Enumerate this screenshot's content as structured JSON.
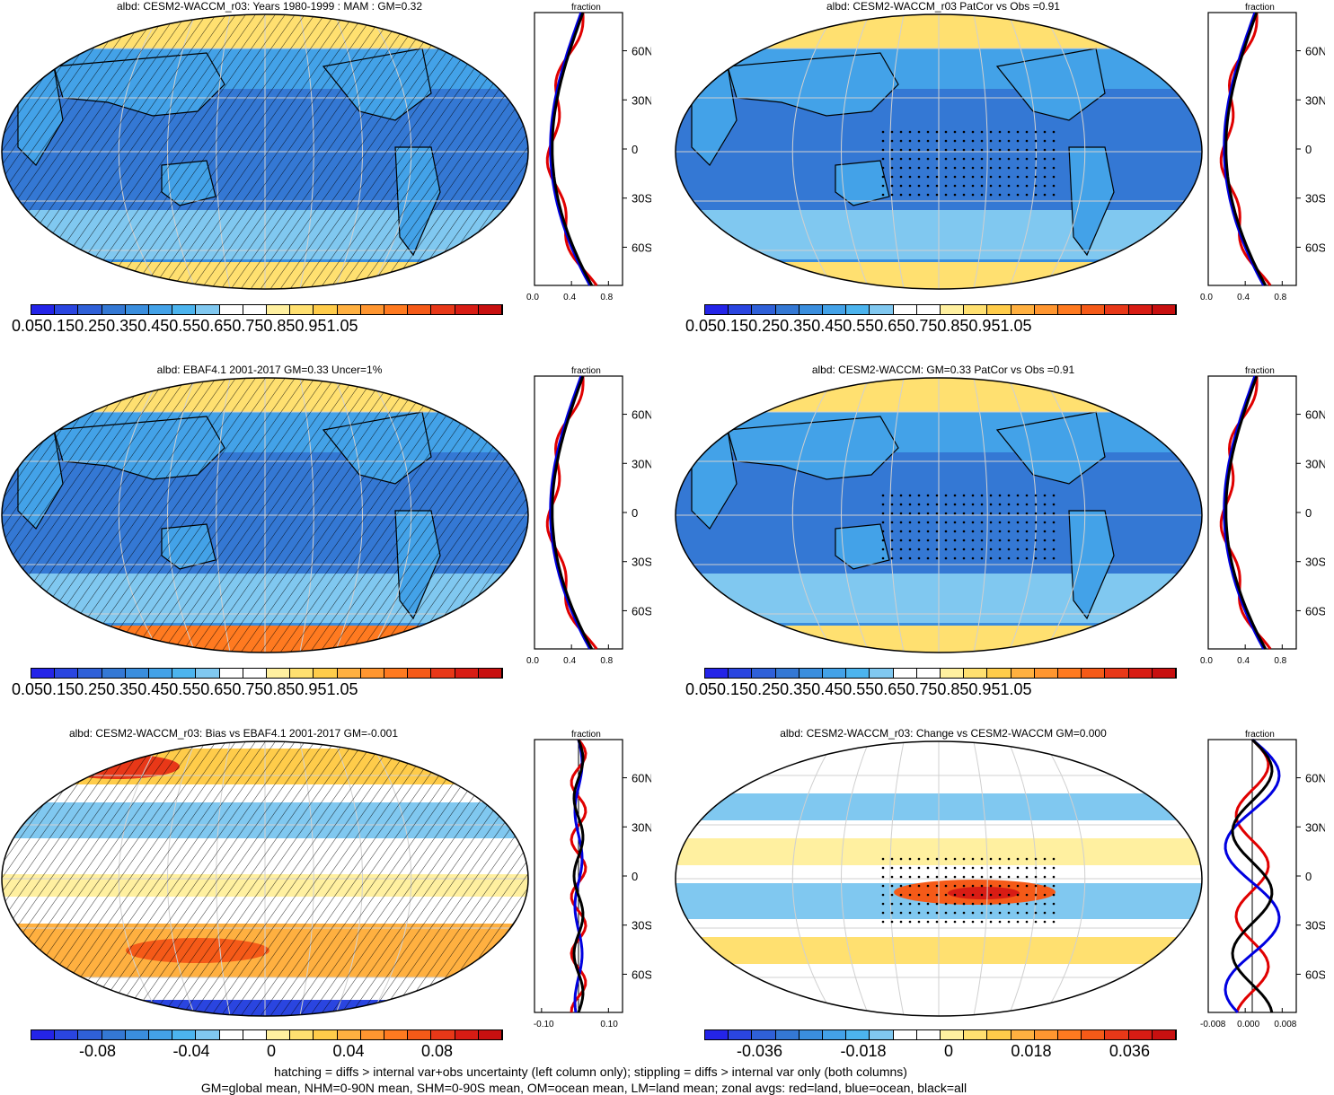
{
  "panels": [
    {
      "title": "albd: CESM2-WACCM_r03: Years 1980-1999 : MAM : GM=0.32",
      "kind": "abs",
      "hatch": true,
      "stipple": false,
      "cb_labels": [
        "0.05",
        "0.15",
        "0.25",
        "0.35",
        "0.45",
        "0.55",
        "0.65",
        "0.75",
        "0.85",
        "0.95",
        "1.05"
      ],
      "zonal_xlabel": "fraction",
      "zonal_xticks": [
        "0.0",
        "0.4",
        "0.8"
      ]
    },
    {
      "title": "albd: CESM2-WACCM_r03 PatCor vs Obs =0.91",
      "kind": "abs",
      "hatch": false,
      "stipple": true,
      "cb_labels": [
        "0.05",
        "0.15",
        "0.25",
        "0.35",
        "0.45",
        "0.55",
        "0.65",
        "0.75",
        "0.85",
        "0.95",
        "1.05"
      ],
      "zonal_xlabel": "fraction",
      "zonal_xticks": [
        "0.0",
        "0.4",
        "0.8"
      ]
    },
    {
      "title": "albd: EBAF4.1 2001-2017 GM=0.33 Uncer=1%",
      "kind": "abs",
      "hatch": true,
      "stipple": false,
      "cb_labels": [
        "0.05",
        "0.15",
        "0.25",
        "0.35",
        "0.45",
        "0.55",
        "0.65",
        "0.75",
        "0.85",
        "0.95",
        "1.05"
      ],
      "zonal_xlabel": "fraction",
      "zonal_xticks": [
        "0.0",
        "0.4",
        "0.8"
      ]
    },
    {
      "title": "albd: CESM2-WACCM: GM=0.33 PatCor vs Obs =0.91",
      "kind": "abs",
      "hatch": false,
      "stipple": true,
      "cb_labels": [
        "0.05",
        "0.15",
        "0.25",
        "0.35",
        "0.45",
        "0.55",
        "0.65",
        "0.75",
        "0.85",
        "0.95",
        "1.05"
      ],
      "zonal_xlabel": "fraction",
      "zonal_xticks": [
        "0.0",
        "0.4",
        "0.8"
      ]
    },
    {
      "title": "albd: CESM2-WACCM_r03: Bias vs EBAF4.1 2001-2017 GM=-0.001",
      "kind": "diff",
      "hatch": true,
      "stipple": false,
      "cb_labels": [
        "-0.08",
        "-0.04",
        "0",
        "0.04",
        "0.08"
      ],
      "zonal_xlabel": "fraction",
      "zonal_xticks": [
        "-0.10",
        "0.10"
      ]
    },
    {
      "title": "albd: CESM2-WACCM_r03: Change vs CESM2-WACCM GM=0.000",
      "kind": "diff",
      "hatch": false,
      "stipple": true,
      "cb_labels": [
        "-0.036",
        "-0.018",
        "0",
        "0.018",
        "0.036"
      ],
      "zonal_xlabel": "fraction",
      "zonal_xticks": [
        "-0.008",
        "0.000",
        "0.008"
      ]
    }
  ],
  "lat_labels": [
    "60N",
    "30N",
    "0",
    "30S",
    "60S"
  ],
  "abs_colors": [
    "#2424e8",
    "#2a45e0",
    "#2f60d8",
    "#3478d4",
    "#3a8ede",
    "#43a2e8",
    "#4cb4ee",
    "#80c8f0",
    "#ffffff",
    "#ffffff",
    "#fff0a0",
    "#ffe070",
    "#ffcc4a",
    "#ffb040",
    "#ff9630",
    "#ff7a20",
    "#f55a18",
    "#e83818",
    "#d81c14",
    "#c81010"
  ],
  "diff_colors": [
    "#2424e8",
    "#2a45e0",
    "#2f60d8",
    "#3478d4",
    "#3a8ede",
    "#43a2e8",
    "#4cb4ee",
    "#80c8f0",
    "#ffffff",
    "#ffffff",
    "#fff0a0",
    "#ffe070",
    "#ffcc4a",
    "#ffb040",
    "#ff9630",
    "#ff7a20",
    "#f55a18",
    "#e83818",
    "#d81c14",
    "#c81010"
  ],
  "footnote_1": "hatching = diffs > internal var+obs uncertainty (left column only); stippling = diffs > internal var only (both columns)",
  "footnote_2": "GM=global mean, NHM=0-90N mean, SHM=0-90S mean, OM=ocean mean, LM=land mean; zonal avgs: red=land, blue=ocean, black=all"
}
